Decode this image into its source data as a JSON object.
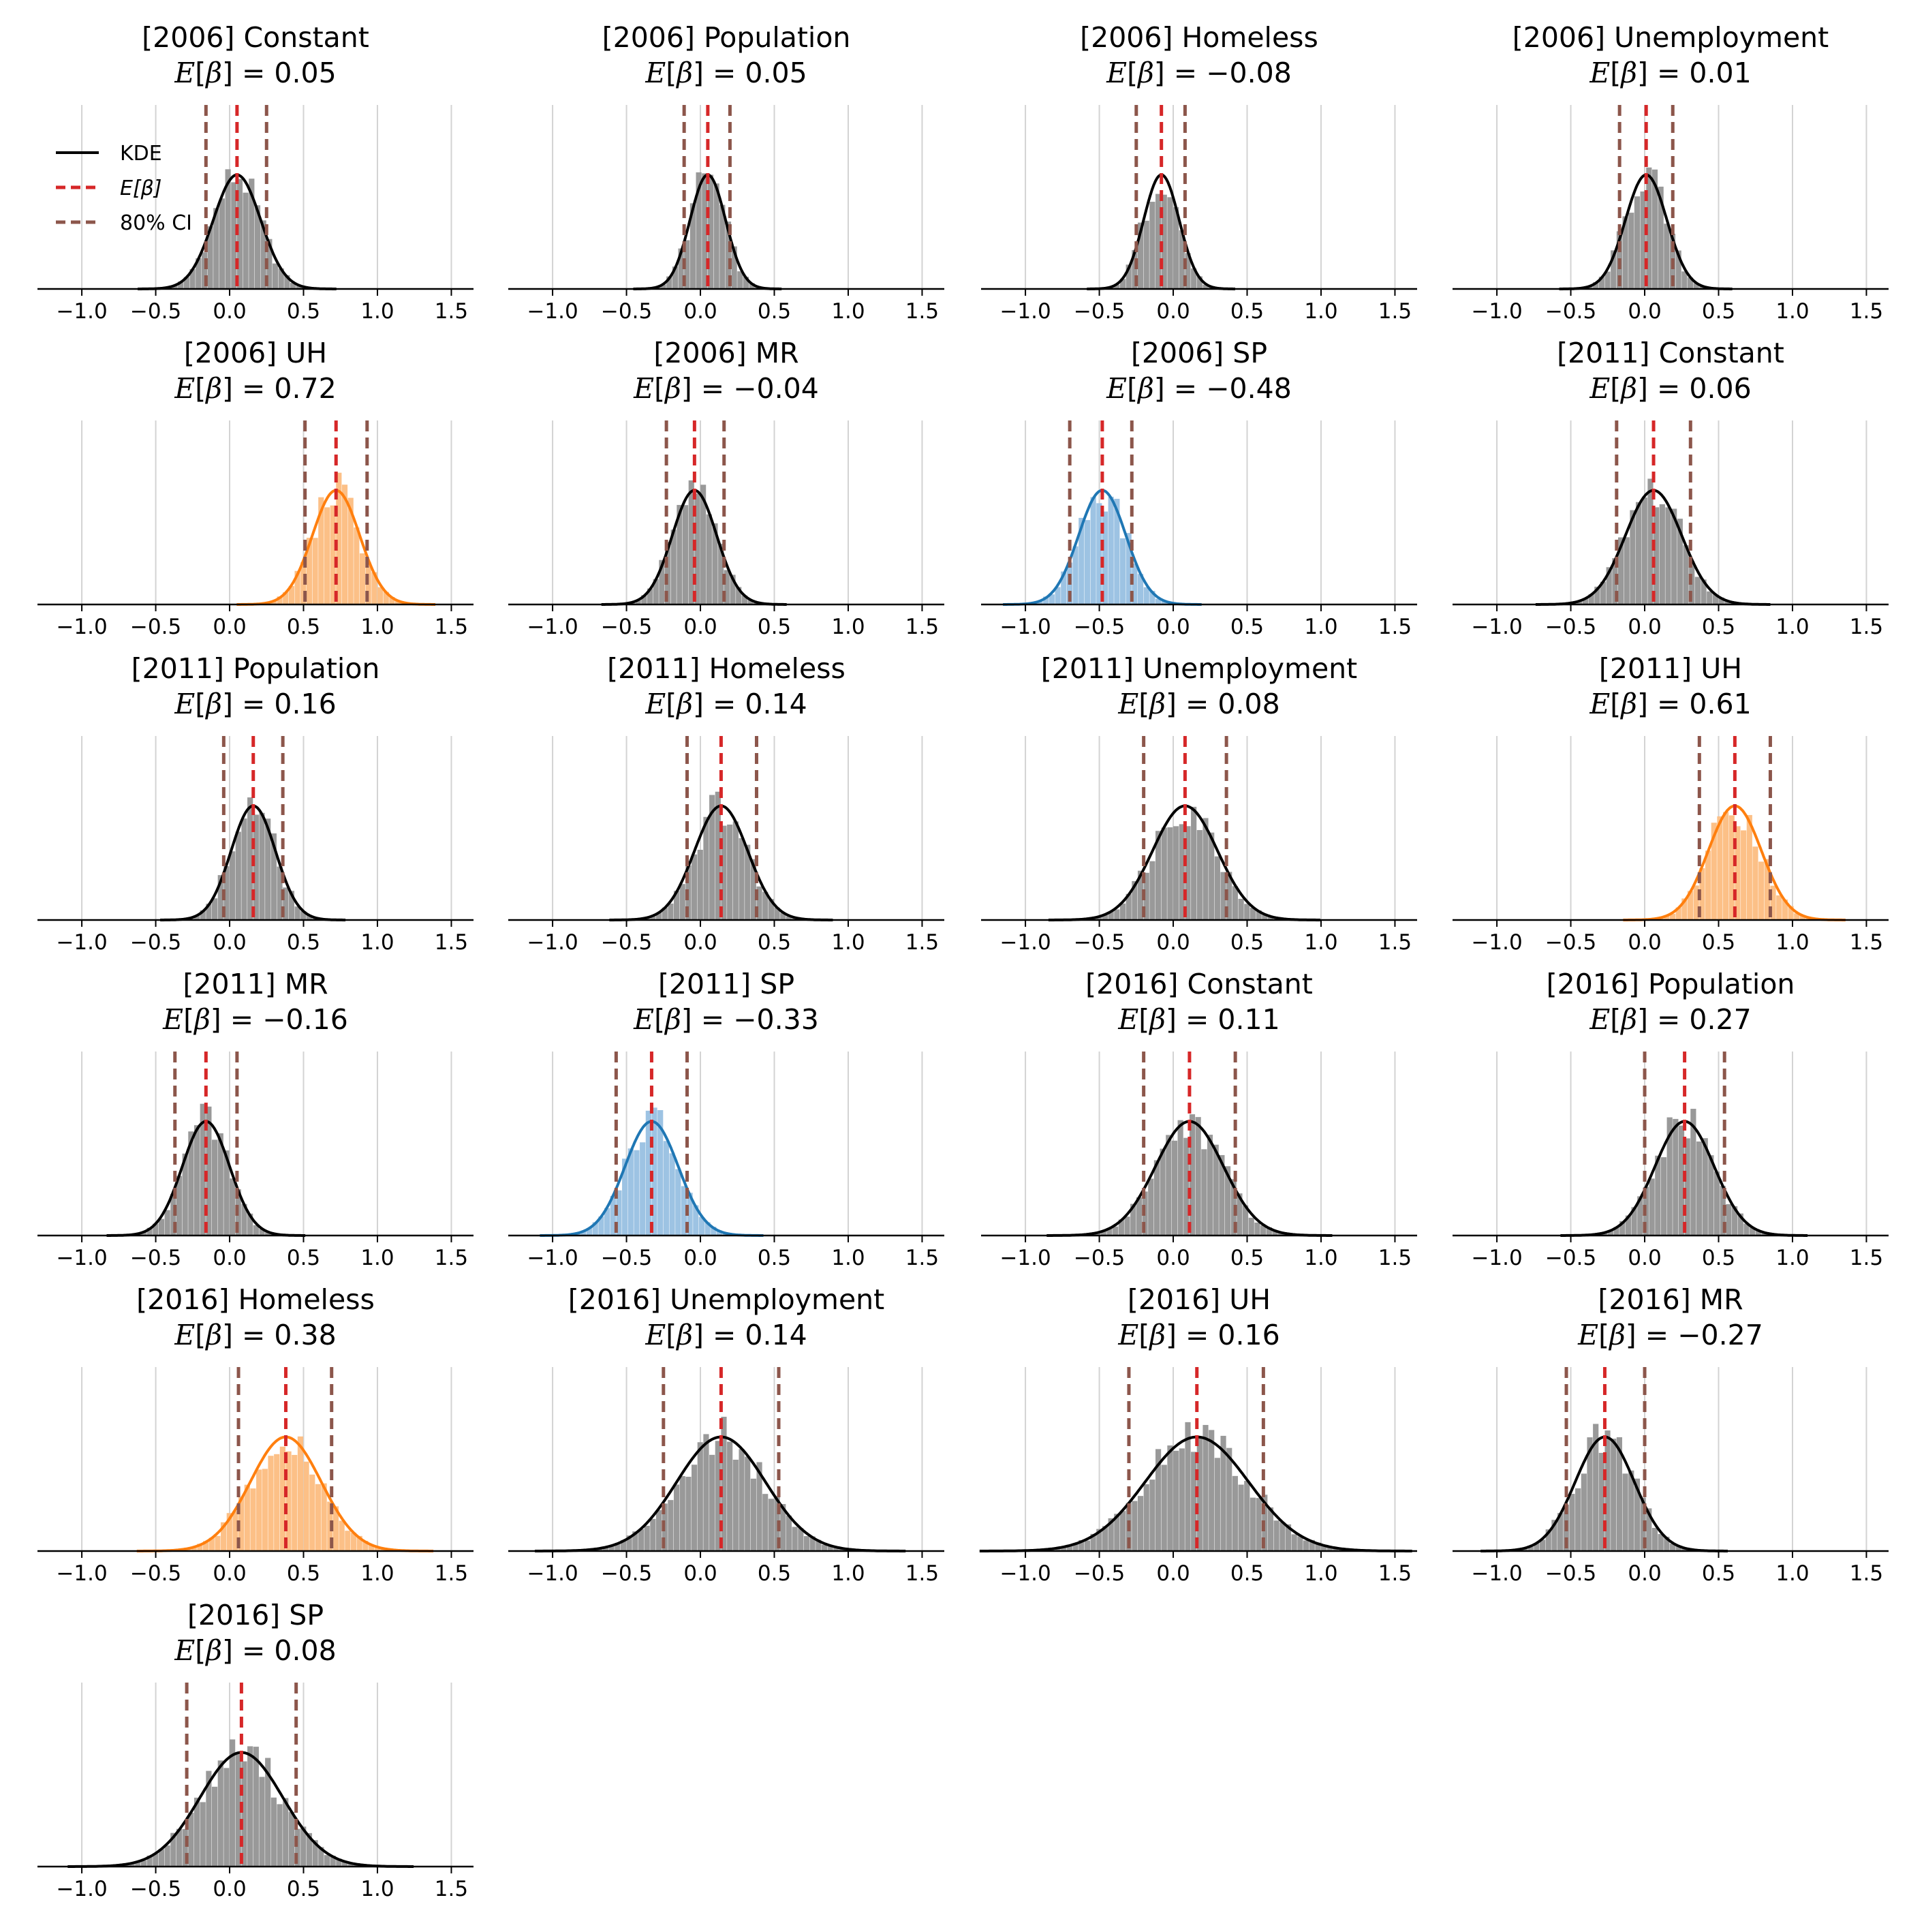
{
  "figure": {
    "legend": {
      "placement": "top-left",
      "entries": [
        {
          "label": "KDE",
          "color": "#000000",
          "style": "solid"
        },
        {
          "label": "E[β]",
          "color": "#d62728",
          "style": "dashed"
        },
        {
          "label": "80% CI",
          "color": "#8c564b",
          "style": "dashed"
        }
      ]
    },
    "colors": {
      "default_fill": "#999999",
      "default_line": "#000000",
      "positive_fill": "#fcc087",
      "positive_line": "#ff7f0e",
      "negative_fill": "#9dc3e3",
      "negative_line": "#1f77b4",
      "mean_line": "#d62728",
      "ci_line": "#8c564b",
      "grid": "#d3d3d3"
    }
  },
  "chart_data": [
    {
      "type": "histogram-kde",
      "title": "[2006] Constant",
      "mean_label": "0.05",
      "mean": 0.05,
      "ci": [
        -0.16,
        0.25
      ],
      "sd": 0.16,
      "hist_max": 1.0,
      "highlight": "none",
      "xlim": [
        -1.3,
        1.65
      ],
      "xticks": [
        -1.0,
        -0.5,
        0.0,
        0.5,
        1.0,
        1.5
      ],
      "xtick_labels": [
        "−1.0",
        "−0.5",
        "0.0",
        "0.5",
        "1.0",
        "1.5"
      ]
    },
    {
      "type": "histogram-kde",
      "title": "[2006] Population",
      "mean_label": "0.05",
      "mean": 0.05,
      "ci": [
        -0.11,
        0.2
      ],
      "sd": 0.12,
      "hist_max": 1.25,
      "highlight": "none",
      "xlim": [
        -1.3,
        1.65
      ],
      "xticks": [
        -1.0,
        -0.5,
        0.0,
        0.5,
        1.0,
        1.5
      ],
      "xtick_labels": [
        "−1.0",
        "−0.5",
        "0.0",
        "0.5",
        "1.0",
        "1.5"
      ]
    },
    {
      "type": "histogram-kde",
      "title": "[2006] Homeless",
      "mean_label": "−0.08",
      "mean": -0.08,
      "ci": [
        -0.25,
        0.08
      ],
      "sd": 0.12,
      "hist_max": 1.25,
      "highlight": "none",
      "xlim": [
        -1.3,
        1.65
      ],
      "xticks": [
        -1.0,
        -0.5,
        0.0,
        0.5,
        1.0,
        1.5
      ],
      "xtick_labels": [
        "−1.0",
        "−0.5",
        "0.0",
        "0.5",
        "1.0",
        "1.5"
      ]
    },
    {
      "type": "histogram-kde",
      "title": "[2006] Unemployment",
      "mean_label": "0.01",
      "mean": 0.01,
      "ci": [
        -0.17,
        0.19
      ],
      "sd": 0.14,
      "hist_max": 1.25,
      "highlight": "none",
      "xlim": [
        -1.3,
        1.65
      ],
      "xticks": [
        -1.0,
        -0.5,
        0.0,
        0.5,
        1.0,
        1.5
      ],
      "xtick_labels": [
        "−1.0",
        "−0.5",
        "0.0",
        "0.5",
        "1.0",
        "1.5"
      ]
    },
    {
      "type": "histogram-kde",
      "title": "[2006] UH",
      "mean_label": "0.72",
      "mean": 0.72,
      "ci": [
        0.51,
        0.93
      ],
      "sd": 0.16,
      "hist_max": 1.0,
      "highlight": "positive",
      "xlim": [
        -1.3,
        1.65
      ],
      "xticks": [
        -1.0,
        -0.5,
        0.0,
        0.5,
        1.0,
        1.5
      ],
      "xtick_labels": [
        "−1.0",
        "−0.5",
        "0.0",
        "0.5",
        "1.0",
        "1.5"
      ]
    },
    {
      "type": "histogram-kde",
      "title": "[2006] MR",
      "mean_label": "−0.04",
      "mean": -0.04,
      "ci": [
        -0.23,
        0.16
      ],
      "sd": 0.15,
      "hist_max": 1.1,
      "highlight": "none",
      "xlim": [
        -1.3,
        1.65
      ],
      "xticks": [
        -1.0,
        -0.5,
        0.0,
        0.5,
        1.0,
        1.5
      ],
      "xtick_labels": [
        "−1.0",
        "−0.5",
        "0.0",
        "0.5",
        "1.0",
        "1.5"
      ]
    },
    {
      "type": "histogram-kde",
      "title": "[2006] SP",
      "mean_label": "−0.48",
      "mean": -0.48,
      "ci": [
        -0.7,
        -0.28
      ],
      "sd": 0.16,
      "hist_max": 1.0,
      "highlight": "negative",
      "xlim": [
        -1.3,
        1.65
      ],
      "xticks": [
        -1.0,
        -0.5,
        0.0,
        0.5,
        1.0,
        1.5
      ],
      "xtick_labels": [
        "−1.0",
        "−0.5",
        "0.0",
        "0.5",
        "1.0",
        "1.5"
      ]
    },
    {
      "type": "histogram-kde",
      "title": "[2011] Constant",
      "mean_label": "0.06",
      "mean": 0.06,
      "ci": [
        -0.19,
        0.31
      ],
      "sd": 0.19,
      "hist_max": 0.85,
      "highlight": "none",
      "xlim": [
        -1.3,
        1.65
      ],
      "xticks": [
        -1.0,
        -0.5,
        0.0,
        0.5,
        1.0,
        1.5
      ],
      "xtick_labels": [
        "−1.0",
        "−0.5",
        "0.0",
        "0.5",
        "1.0",
        "1.5"
      ]
    },
    {
      "type": "histogram-kde",
      "title": "[2011] Population",
      "mean_label": "0.16",
      "mean": 0.16,
      "ci": [
        -0.04,
        0.36
      ],
      "sd": 0.15,
      "hist_max": 1.1,
      "highlight": "none",
      "xlim": [
        -1.3,
        1.65
      ],
      "xticks": [
        -1.0,
        -0.5,
        0.0,
        0.5,
        1.0,
        1.5
      ],
      "xtick_labels": [
        "−1.0",
        "−0.5",
        "0.0",
        "0.5",
        "1.0",
        "1.5"
      ]
    },
    {
      "type": "histogram-kde",
      "title": "[2011] Homeless",
      "mean_label": "0.14",
      "mean": 0.14,
      "ci": [
        -0.09,
        0.38
      ],
      "sd": 0.18,
      "hist_max": 1.1,
      "highlight": "none",
      "xlim": [
        -1.3,
        1.65
      ],
      "xticks": [
        -1.0,
        -0.5,
        0.0,
        0.5,
        1.0,
        1.5
      ],
      "xtick_labels": [
        "−1.0",
        "−0.5",
        "0.0",
        "0.5",
        "1.0",
        "1.5"
      ]
    },
    {
      "type": "histogram-kde",
      "title": "[2011] Unemployment",
      "mean_label": "0.08",
      "mean": 0.08,
      "ci": [
        -0.2,
        0.36
      ],
      "sd": 0.22,
      "hist_max": 0.8,
      "highlight": "none",
      "xlim": [
        -1.3,
        1.65
      ],
      "xticks": [
        -1.0,
        -0.5,
        0.0,
        0.5,
        1.0,
        1.5
      ],
      "xtick_labels": [
        "−1.0",
        "−0.5",
        "0.0",
        "0.5",
        "1.0",
        "1.5"
      ]
    },
    {
      "type": "histogram-kde",
      "title": "[2011] UH",
      "mean_label": "0.61",
      "mean": 0.61,
      "ci": [
        0.37,
        0.85
      ],
      "sd": 0.18,
      "hist_max": 1.0,
      "highlight": "positive",
      "xlim": [
        -1.3,
        1.65
      ],
      "xticks": [
        -1.0,
        -0.5,
        0.0,
        0.5,
        1.0,
        1.5
      ],
      "xtick_labels": [
        "−1.0",
        "−0.5",
        "0.0",
        "0.5",
        "1.0",
        "1.5"
      ]
    },
    {
      "type": "histogram-kde",
      "title": "[2011] MR",
      "mean_label": "−0.16",
      "mean": -0.16,
      "ci": [
        -0.37,
        0.05
      ],
      "sd": 0.16,
      "hist_max": 1.05,
      "highlight": "none",
      "xlim": [
        -1.3,
        1.65
      ],
      "xticks": [
        -1.0,
        -0.5,
        0.0,
        0.5,
        1.0,
        1.5
      ],
      "xtick_labels": [
        "−1.0",
        "−0.5",
        "0.0",
        "0.5",
        "1.0",
        "1.5"
      ]
    },
    {
      "type": "histogram-kde",
      "title": "[2011] SP",
      "mean_label": "−0.33",
      "mean": -0.33,
      "ci": [
        -0.57,
        -0.09
      ],
      "sd": 0.18,
      "hist_max": 1.0,
      "highlight": "negative",
      "xlim": [
        -1.3,
        1.65
      ],
      "xticks": [
        -1.0,
        -0.5,
        0.0,
        0.5,
        1.0,
        1.5
      ],
      "xtick_labels": [
        "−1.0",
        "−0.5",
        "0.0",
        "0.5",
        "1.0",
        "1.5"
      ]
    },
    {
      "type": "histogram-kde",
      "title": "[2016] Constant",
      "mean_label": "0.11",
      "mean": 0.11,
      "ci": [
        -0.2,
        0.42
      ],
      "sd": 0.23,
      "hist_max": 0.8,
      "highlight": "none",
      "xlim": [
        -1.3,
        1.65
      ],
      "xticks": [
        -1.0,
        -0.5,
        0.0,
        0.5,
        1.0,
        1.5
      ],
      "xtick_labels": [
        "−1.0",
        "−0.5",
        "0.0",
        "0.5",
        "1.0",
        "1.5"
      ]
    },
    {
      "type": "histogram-kde",
      "title": "[2016] Population",
      "mean_label": "0.27",
      "mean": 0.27,
      "ci": [
        0.0,
        0.54
      ],
      "sd": 0.2,
      "hist_max": 0.9,
      "highlight": "none",
      "xlim": [
        -1.3,
        1.65
      ],
      "xticks": [
        -1.0,
        -0.5,
        0.0,
        0.5,
        1.0,
        1.5
      ],
      "xtick_labels": [
        "−1.0",
        "−0.5",
        "0.0",
        "0.5",
        "1.0",
        "1.5"
      ]
    },
    {
      "type": "histogram-kde",
      "title": "[2016] Homeless",
      "mean_label": "0.38",
      "mean": 0.38,
      "ci": [
        0.06,
        0.69
      ],
      "sd": 0.24,
      "hist_max": 0.75,
      "highlight": "positive",
      "xlim": [
        -1.3,
        1.65
      ],
      "xticks": [
        -1.0,
        -0.5,
        0.0,
        0.5,
        1.0,
        1.5
      ],
      "xtick_labels": [
        "−1.0",
        "−0.5",
        "0.0",
        "0.5",
        "1.0",
        "1.5"
      ]
    },
    {
      "type": "histogram-kde",
      "title": "[2016] Unemployment",
      "mean_label": "0.14",
      "mean": 0.14,
      "ci": [
        -0.25,
        0.53
      ],
      "sd": 0.3,
      "hist_max": 0.6,
      "highlight": "none",
      "xlim": [
        -1.3,
        1.65
      ],
      "xticks": [
        -1.0,
        -0.5,
        0.0,
        0.5,
        1.0,
        1.5
      ],
      "xtick_labels": [
        "−1.0",
        "−0.5",
        "0.0",
        "0.5",
        "1.0",
        "1.5"
      ]
    },
    {
      "type": "histogram-kde",
      "title": "[2016] UH",
      "mean_label": "0.16",
      "mean": 0.16,
      "ci": [
        -0.3,
        0.61
      ],
      "sd": 0.35,
      "hist_max": 0.55,
      "highlight": "none",
      "xlim": [
        -1.3,
        1.65
      ],
      "xticks": [
        -1.0,
        -0.5,
        0.0,
        0.5,
        1.0,
        1.5
      ],
      "xtick_labels": [
        "−1.0",
        "−0.5",
        "0.0",
        "0.5",
        "1.0",
        "1.5"
      ]
    },
    {
      "type": "histogram-kde",
      "title": "[2016] MR",
      "mean_label": "−0.27",
      "mean": -0.27,
      "ci": [
        -0.53,
        0.0
      ],
      "sd": 0.2,
      "hist_max": 0.9,
      "highlight": "none",
      "xlim": [
        -1.3,
        1.65
      ],
      "xticks": [
        -1.0,
        -0.5,
        0.0,
        0.5,
        1.0,
        1.5
      ],
      "xtick_labels": [
        "−1.0",
        "−0.5",
        "0.0",
        "0.5",
        "1.0",
        "1.5"
      ]
    },
    {
      "type": "histogram-kde",
      "title": "[2016] SP",
      "mean_label": "0.08",
      "mean": 0.08,
      "ci": [
        -0.29,
        0.45
      ],
      "sd": 0.28,
      "hist_max": 0.65,
      "highlight": "none",
      "xlim": [
        -1.3,
        1.65
      ],
      "xticks": [
        -1.0,
        -0.5,
        0.0,
        0.5,
        1.0,
        1.5
      ],
      "xtick_labels": [
        "−1.0",
        "−0.5",
        "0.0",
        "0.5",
        "1.0",
        "1.5"
      ]
    }
  ]
}
